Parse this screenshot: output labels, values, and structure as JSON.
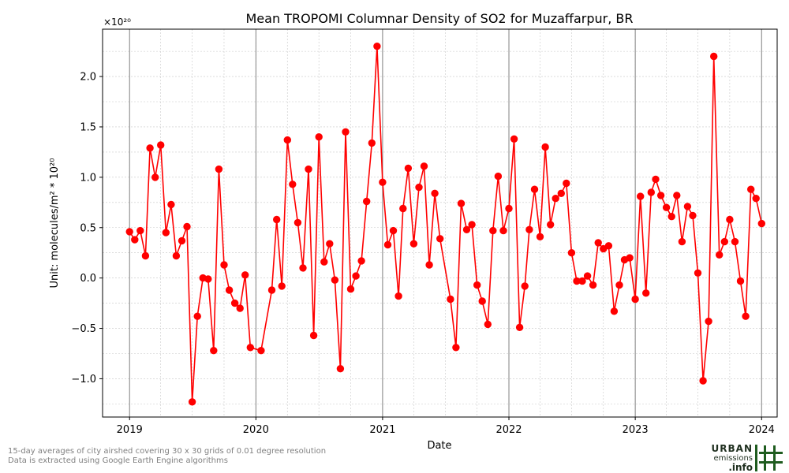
{
  "chart_data": {
    "type": "line",
    "title": "Mean TROPOMI Columnar Density of SO2 for Muzaffarpur, BR",
    "xlabel": "Date",
    "ylabel": "Unit: molecules/m² * 10²⁰",
    "offset_label": "×10²⁰",
    "xlim": [
      "2018-10-15",
      "2024-02-15"
    ],
    "ylim": [
      -1.38,
      2.47
    ],
    "x_ticks": [
      "2019",
      "2020",
      "2021",
      "2022",
      "2023",
      "2024"
    ],
    "y_ticks": [
      -1.0,
      -0.5,
      0.0,
      0.5,
      1.0,
      1.5,
      2.0
    ],
    "y_tick_labels": [
      "−1.0",
      "−0.5",
      "0.0",
      "0.5",
      "1.0",
      "1.5",
      "2.0"
    ],
    "grid": true,
    "color": "#ff0000",
    "series": [
      {
        "points": [
          [
            "2019-01-01",
            0.46
          ],
          [
            "2019-01-16",
            0.38
          ],
          [
            "2019-02-01",
            0.47
          ],
          [
            "2019-02-16",
            0.22
          ],
          [
            "2019-03-01",
            1.29
          ],
          [
            "2019-03-16",
            1.0
          ],
          [
            "2019-04-01",
            1.32
          ],
          [
            "2019-04-16",
            0.45
          ],
          [
            "2019-05-01",
            0.73
          ],
          [
            "2019-05-16",
            0.22
          ],
          [
            "2019-06-01",
            0.37
          ],
          [
            "2019-06-16",
            0.51
          ],
          [
            "2019-07-01",
            -1.23
          ],
          [
            "2019-07-16",
            -0.38
          ],
          [
            "2019-08-01",
            0.0
          ],
          [
            "2019-08-16",
            -0.01
          ],
          [
            "2019-09-01",
            -0.72
          ],
          [
            "2019-09-16",
            1.08
          ],
          [
            "2019-10-01",
            0.13
          ],
          [
            "2019-10-16",
            -0.12
          ],
          [
            "2019-11-01",
            -0.25
          ],
          [
            "2019-11-16",
            -0.3
          ],
          [
            "2019-12-01",
            0.03
          ],
          [
            "2019-12-16",
            -0.69
          ],
          [
            "2020-01-16",
            -0.72
          ],
          [
            "2020-02-16",
            -0.12
          ],
          [
            "2020-03-01",
            0.58
          ],
          [
            "2020-03-16",
            -0.08
          ],
          [
            "2020-04-01",
            1.37
          ],
          [
            "2020-04-16",
            0.93
          ],
          [
            "2020-05-01",
            0.55
          ],
          [
            "2020-05-16",
            0.1
          ],
          [
            "2020-06-01",
            1.08
          ],
          [
            "2020-06-16",
            -0.57
          ],
          [
            "2020-07-01",
            1.4
          ],
          [
            "2020-07-16",
            0.16
          ],
          [
            "2020-08-01",
            0.34
          ],
          [
            "2020-08-16",
            -0.02
          ],
          [
            "2020-09-01",
            -0.9
          ],
          [
            "2020-09-16",
            1.45
          ],
          [
            "2020-10-01",
            -0.11
          ],
          [
            "2020-10-16",
            0.02
          ],
          [
            "2020-11-01",
            0.17
          ],
          [
            "2020-11-16",
            0.76
          ],
          [
            "2020-12-01",
            1.34
          ],
          [
            "2020-12-16",
            2.3
          ],
          [
            "2021-01-01",
            0.95
          ],
          [
            "2021-01-16",
            0.33
          ],
          [
            "2021-02-01",
            0.47
          ],
          [
            "2021-02-16",
            -0.18
          ],
          [
            "2021-03-01",
            0.69
          ],
          [
            "2021-03-16",
            1.09
          ],
          [
            "2021-04-01",
            0.34
          ],
          [
            "2021-04-16",
            0.9
          ],
          [
            "2021-05-01",
            1.11
          ],
          [
            "2021-05-16",
            0.13
          ],
          [
            "2021-06-01",
            0.84
          ],
          [
            "2021-06-16",
            0.39
          ],
          [
            "2021-07-16",
            -0.21
          ],
          [
            "2021-08-01",
            -0.69
          ],
          [
            "2021-08-16",
            0.74
          ],
          [
            "2021-09-01",
            0.48
          ],
          [
            "2021-09-16",
            0.53
          ],
          [
            "2021-10-01",
            -0.07
          ],
          [
            "2021-10-16",
            -0.23
          ],
          [
            "2021-11-01",
            -0.46
          ],
          [
            "2021-11-16",
            0.47
          ],
          [
            "2021-12-01",
            1.01
          ],
          [
            "2021-12-16",
            0.47
          ],
          [
            "2022-01-01",
            0.69
          ],
          [
            "2022-01-16",
            1.38
          ],
          [
            "2022-02-01",
            -0.49
          ],
          [
            "2022-02-16",
            -0.08
          ],
          [
            "2022-03-01",
            0.48
          ],
          [
            "2022-03-16",
            0.88
          ],
          [
            "2022-04-01",
            0.41
          ],
          [
            "2022-04-16",
            1.3
          ],
          [
            "2022-05-01",
            0.53
          ],
          [
            "2022-05-16",
            0.79
          ],
          [
            "2022-06-01",
            0.84
          ],
          [
            "2022-06-16",
            0.94
          ],
          [
            "2022-07-01",
            0.25
          ],
          [
            "2022-07-16",
            -0.03
          ],
          [
            "2022-08-01",
            -0.03
          ],
          [
            "2022-08-16",
            0.02
          ],
          [
            "2022-09-01",
            -0.07
          ],
          [
            "2022-09-16",
            0.35
          ],
          [
            "2022-10-01",
            0.29
          ],
          [
            "2022-10-16",
            0.32
          ],
          [
            "2022-11-01",
            -0.33
          ],
          [
            "2022-11-16",
            -0.07
          ],
          [
            "2022-12-01",
            0.18
          ],
          [
            "2022-12-16",
            0.2
          ],
          [
            "2023-01-01",
            -0.21
          ],
          [
            "2023-01-16",
            0.81
          ],
          [
            "2023-02-01",
            -0.15
          ],
          [
            "2023-02-16",
            0.85
          ],
          [
            "2023-03-01",
            0.98
          ],
          [
            "2023-03-16",
            0.82
          ],
          [
            "2023-04-01",
            0.7
          ],
          [
            "2023-04-16",
            0.61
          ],
          [
            "2023-05-01",
            0.82
          ],
          [
            "2023-05-16",
            0.36
          ],
          [
            "2023-06-01",
            0.71
          ],
          [
            "2023-06-16",
            0.62
          ],
          [
            "2023-07-01",
            0.05
          ],
          [
            "2023-07-16",
            -1.02
          ],
          [
            "2023-08-01",
            -0.43
          ],
          [
            "2023-08-16",
            2.2
          ],
          [
            "2023-09-01",
            0.23
          ],
          [
            "2023-09-16",
            0.36
          ],
          [
            "2023-10-01",
            0.58
          ],
          [
            "2023-10-16",
            0.36
          ],
          [
            "2023-11-01",
            -0.03
          ],
          [
            "2023-11-16",
            -0.38
          ],
          [
            "2023-12-01",
            0.88
          ],
          [
            "2023-12-16",
            0.79
          ],
          [
            "2024-01-01",
            0.54
          ]
        ]
      }
    ]
  },
  "footer": {
    "note_line1": "15-day averages of city airshed covering 30 x 30 grids of 0.01 degree resolution",
    "note_line2": "Data is extracted using Google Earth Engine algorithms"
  },
  "logo": {
    "line1": "URBAN",
    "line2": "emissions",
    "line3": ".info",
    "color": "#1f5c1f"
  }
}
